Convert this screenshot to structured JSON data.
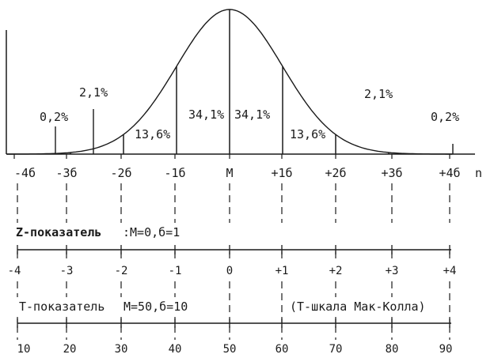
{
  "percent_bands": [
    "0,2%",
    "2,1%",
    "13,6%",
    "34,1%",
    "34,1%",
    "13,6%",
    "2,1%",
    "0,2%"
  ],
  "sigma_labels": [
    "-4б",
    "-3б",
    "-2б",
    "-1б",
    "M",
    "+1б",
    "+2б",
    "+3б",
    "+4б"
  ],
  "axis_end_label": "n",
  "z_scale": {
    "name": "Z-показатель",
    "params": ":M=0,б=1",
    "values": [
      "-4",
      "-3",
      "-2",
      "-1",
      "0",
      "+1",
      "+2",
      "+3",
      "+4"
    ]
  },
  "t_scale": {
    "name": "T-показатель",
    "params": "M=50,б=10",
    "note": "(T-шкала Мак-Колла)",
    "values": [
      "10",
      "20",
      "30",
      "40",
      "50",
      "60",
      "70",
      "80",
      "90"
    ]
  },
  "colors": {
    "ink": "#1a1a1a",
    "paper": "#ffffff"
  }
}
